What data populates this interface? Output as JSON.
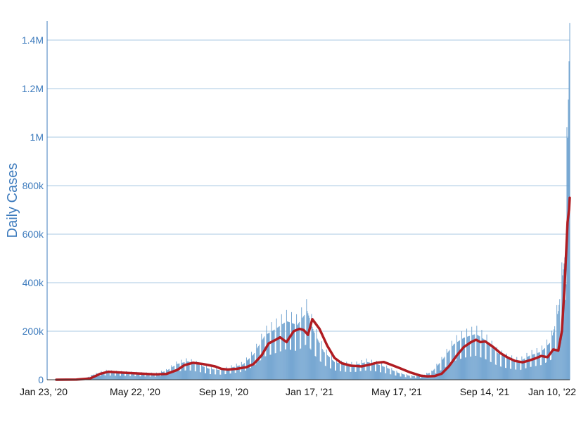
{
  "chart_data": {
    "type": "bar",
    "ylabel": "Daily Cases",
    "xlabel": "",
    "ylim": [
      0,
      1400000
    ],
    "grid": true,
    "x_ticks": [
      "Jan 23, '20",
      "May 22, '20",
      "Sep 19, '20",
      "Jan 17, '21",
      "May 17, '21",
      "Sep 14, '21",
      "Jan 10, '22"
    ],
    "y_ticks": [
      "0",
      "200k",
      "400k",
      "600k",
      "800k",
      "1M",
      "1.2M",
      "1.4M"
    ],
    "y_tick_values": [
      0,
      200000,
      400000,
      600000,
      800000,
      1000000,
      1200000,
      1400000
    ],
    "colors": {
      "bars": "#6a9fce",
      "average_line": "#b01c22",
      "axis_text": "#3d7bbd",
      "grid": "#a9c9e3"
    },
    "series": [
      {
        "kind": "bars",
        "x": [
          "2020-01-23",
          "2020-03-01",
          "2020-03-15",
          "2020-04-01",
          "2020-04-15",
          "2020-05-01",
          "2020-05-22",
          "2020-06-10",
          "2020-06-25",
          "2020-07-10",
          "2020-07-25",
          "2020-08-10",
          "2020-08-25",
          "2020-09-10",
          "2020-09-19",
          "2020-10-10",
          "2020-10-25",
          "2020-11-10",
          "2020-11-25",
          "2020-12-10",
          "2020-12-25",
          "2021-01-08",
          "2021-01-17",
          "2021-01-31",
          "2021-02-15",
          "2021-03-01",
          "2021-03-15",
          "2021-04-01",
          "2021-04-15",
          "2021-05-01",
          "2021-05-17",
          "2021-06-01",
          "2021-06-15",
          "2021-07-01",
          "2021-07-15",
          "2021-08-01",
          "2021-08-15",
          "2021-09-01",
          "2021-09-14",
          "2021-10-01",
          "2021-10-15",
          "2021-11-01",
          "2021-11-15",
          "2021-12-01",
          "2021-12-15",
          "2021-12-25",
          "2022-01-03",
          "2022-01-07",
          "2022-01-10"
        ],
        "values": [
          0,
          2000,
          20000,
          33000,
          30000,
          28000,
          25000,
          23000,
          35000,
          62000,
          72000,
          58000,
          42000,
          38000,
          44000,
          60000,
          100000,
          175000,
          200000,
          230000,
          215000,
          270000,
          190000,
          110000,
          70000,
          60000,
          58000,
          70000,
          62000,
          45000,
          25000,
          15000,
          14000,
          30000,
          75000,
          140000,
          165000,
          180000,
          155000,
          105000,
          85000,
          72000,
          95000,
          110000,
          150000,
          270000,
          480000,
          950000,
          1400000
        ]
      },
      {
        "kind": "line",
        "name": "",
        "x": [
          "2020-01-23",
          "2020-02-20",
          "2020-03-10",
          "2020-03-25",
          "2020-04-05",
          "2020-04-20",
          "2020-05-01",
          "2020-05-22",
          "2020-06-10",
          "2020-06-25",
          "2020-07-10",
          "2020-07-20",
          "2020-08-01",
          "2020-08-15",
          "2020-09-01",
          "2020-09-10",
          "2020-09-19",
          "2020-10-01",
          "2020-10-15",
          "2020-10-25",
          "2020-11-05",
          "2020-11-15",
          "2020-11-25",
          "2020-12-01",
          "2020-12-10",
          "2020-12-20",
          "2020-12-28",
          "2021-01-03",
          "2021-01-09",
          "2021-01-15",
          "2021-01-25",
          "2021-02-05",
          "2021-02-15",
          "2021-02-25",
          "2021-03-10",
          "2021-03-25",
          "2021-04-05",
          "2021-04-15",
          "2021-04-25",
          "2021-05-05",
          "2021-05-17",
          "2021-06-01",
          "2021-06-15",
          "2021-06-25",
          "2021-07-05",
          "2021-07-15",
          "2021-07-25",
          "2021-08-05",
          "2021-08-15",
          "2021-08-25",
          "2021-09-01",
          "2021-09-07",
          "2021-09-14",
          "2021-09-25",
          "2021-10-05",
          "2021-10-15",
          "2021-10-25",
          "2021-11-05",
          "2021-11-15",
          "2021-11-25",
          "2021-12-01",
          "2021-12-10",
          "2021-12-18",
          "2021-12-25",
          "2021-12-30",
          "2022-01-03",
          "2022-01-07",
          "2022-01-09",
          "2022-01-10"
        ],
        "values": [
          0,
          1000,
          5000,
          25000,
          33000,
          30000,
          28000,
          25000,
          22000,
          24000,
          40000,
          60000,
          70000,
          65000,
          55000,
          45000,
          42000,
          45000,
          52000,
          65000,
          100000,
          150000,
          165000,
          175000,
          155000,
          200000,
          210000,
          205000,
          185000,
          250000,
          210000,
          140000,
          90000,
          68000,
          58000,
          55000,
          62000,
          70000,
          73000,
          62000,
          48000,
          30000,
          17000,
          14000,
          15000,
          25000,
          55000,
          100000,
          135000,
          155000,
          165000,
          155000,
          158000,
          135000,
          110000,
          92000,
          78000,
          72000,
          80000,
          90000,
          98000,
          93000,
          125000,
          120000,
          200000,
          400000,
          650000,
          700000,
          750000
        ]
      }
    ]
  }
}
